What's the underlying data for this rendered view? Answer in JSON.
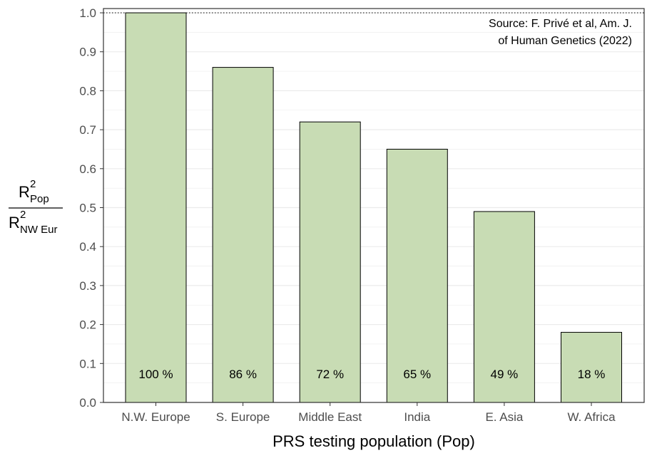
{
  "chart_data": {
    "type": "bar",
    "categories": [
      "N.W. Europe",
      "S. Europe",
      "Middle East",
      "India",
      "E. Asia",
      "W. Africa"
    ],
    "values": [
      1.0,
      0.86,
      0.72,
      0.65,
      0.49,
      0.18
    ],
    "bar_labels": [
      "100 %",
      "86 %",
      "72 %",
      "65 %",
      "49 %",
      "18 %"
    ],
    "xlabel": "PRS testing population (Pop)",
    "ylabel": {
      "numerator": "R",
      "numerator_sup": "2",
      "numerator_sub": "Pop",
      "denominator": "R",
      "denominator_sup": "2",
      "denominator_sub": "NW Eur"
    },
    "ylim": [
      0,
      1.0
    ],
    "yticks": [
      "0.0",
      "0.1",
      "0.2",
      "0.3",
      "0.4",
      "0.5",
      "0.6",
      "0.7",
      "0.8",
      "0.9",
      "1.0"
    ],
    "reference_line": 1.0,
    "grid": true,
    "annotation": [
      "Source: F. Privé et al, Am. J.",
      "of Human Genetics (2022)"
    ],
    "colors": {
      "bar_fill": "#c8dcb4",
      "bar_stroke": "#000000",
      "grid": "#ebebeb"
    }
  }
}
